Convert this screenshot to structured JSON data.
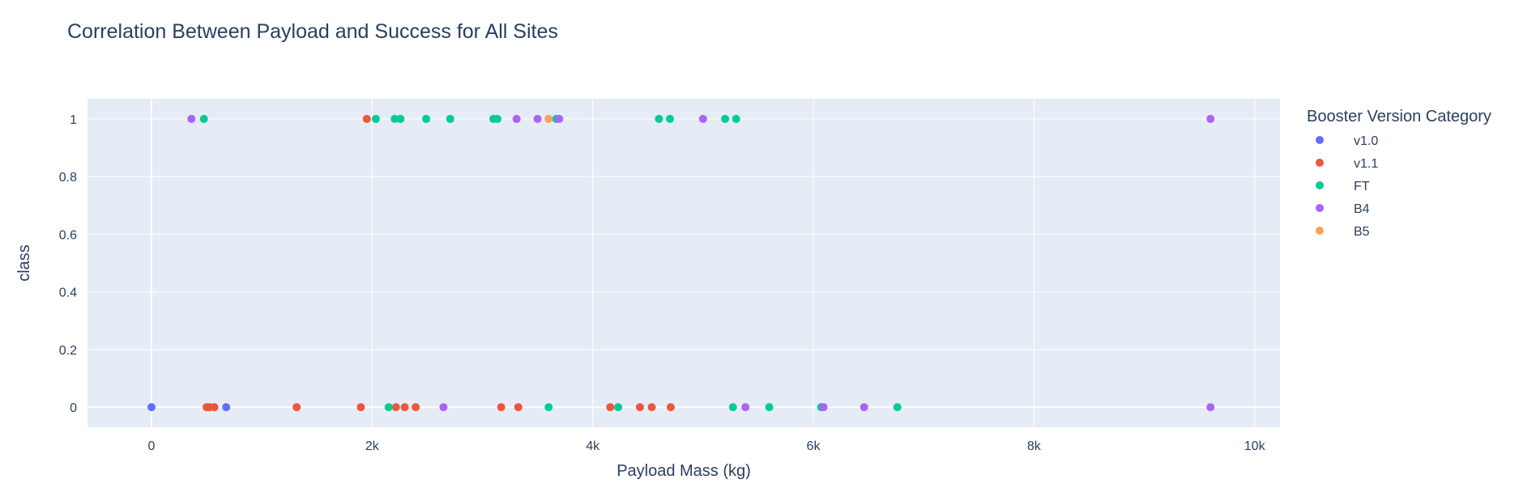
{
  "chart_data": {
    "type": "scatter",
    "title": "Correlation Between Payload and Success for All Sites",
    "xlabel": "Payload Mass (kg)",
    "ylabel": "class",
    "xlim": [
      -580,
      10230
    ],
    "ylim": [
      -0.07,
      1.07
    ],
    "x_ticks": [
      0,
      2000,
      4000,
      6000,
      8000,
      10000
    ],
    "x_tick_labels": [
      "0",
      "2k",
      "4k",
      "6k",
      "8k",
      "10k"
    ],
    "y_ticks": [
      0,
      0.2,
      0.4,
      0.6,
      0.8,
      1
    ],
    "y_tick_labels": [
      "0",
      "0.2",
      "0.4",
      "0.6",
      "0.8",
      "1"
    ],
    "grid": true,
    "legend_title": "Booster Version Category",
    "legend_position": "right",
    "series": [
      {
        "name": "v1.0",
        "color": "#636efa",
        "x": [
          0,
          677
        ],
        "y": [
          0,
          0
        ]
      },
      {
        "name": "v1.1",
        "color": "#ef553b",
        "x": [
          1952,
          500,
          525,
          570,
          1316,
          1898,
          2216,
          2296,
          2395,
          3170,
          3325,
          4159,
          4428,
          4535,
          4707
        ],
        "y": [
          1,
          0,
          0,
          0,
          0,
          0,
          0,
          0,
          0,
          0,
          0,
          0,
          0,
          0,
          0
        ]
      },
      {
        "name": "FT",
        "color": "#00cc96",
        "x": [
          475,
          2034,
          2205,
          2257,
          2490,
          2708,
          3100,
          3136,
          3669,
          4600,
          4700,
          5200,
          5300,
          2150,
          3600,
          4230,
          5271,
          5600,
          6070,
          6761
        ],
        "y": [
          1,
          1,
          1,
          1,
          1,
          1,
          1,
          1,
          1,
          1,
          1,
          1,
          1,
          0,
          0,
          0,
          0,
          0,
          0,
          0
        ]
      },
      {
        "name": "B4",
        "color": "#ab63fa",
        "x": [
          362,
          3310,
          3500,
          3696,
          5000,
          9600,
          2647,
          5384,
          6092,
          6460,
          9600
        ],
        "y": [
          1,
          1,
          1,
          1,
          1,
          1,
          0,
          0,
          0,
          0,
          0
        ]
      },
      {
        "name": "B5",
        "color": "#ffa15a",
        "x": [
          3600
        ],
        "y": [
          1
        ]
      }
    ]
  }
}
